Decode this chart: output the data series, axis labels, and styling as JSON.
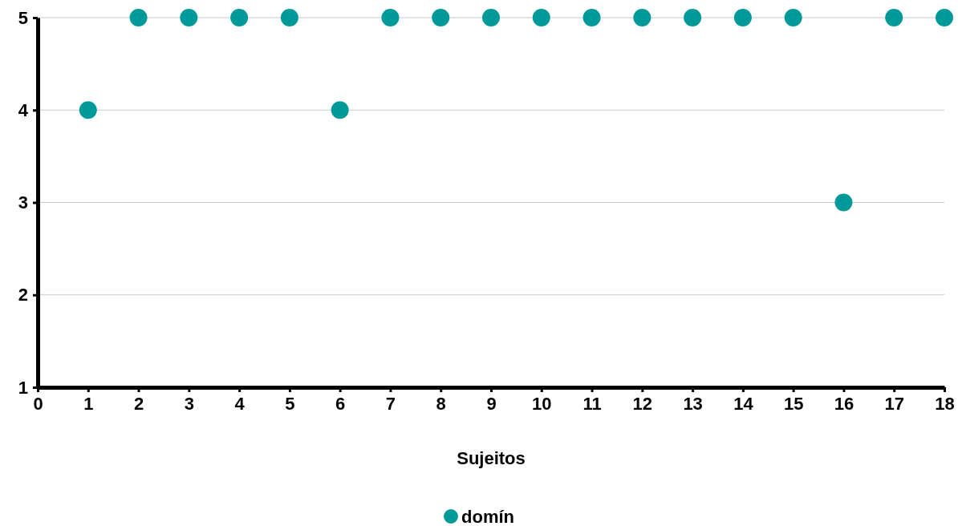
{
  "chart_data": {
    "type": "scatter",
    "xlabel": "Sujeitos",
    "x": [
      1,
      2,
      3,
      4,
      5,
      6,
      7,
      8,
      9,
      10,
      11,
      12,
      13,
      14,
      15,
      16,
      17,
      18
    ],
    "series": [
      {
        "name": "domín",
        "color": "#009999",
        "values": [
          4,
          5,
          5,
          5,
          5,
          4,
          5,
          5,
          5,
          5,
          5,
          5,
          5,
          5,
          5,
          3,
          5,
          5
        ]
      }
    ],
    "xlim": [
      0,
      18
    ],
    "xticks": [
      0,
      1,
      2,
      3,
      4,
      5,
      6,
      7,
      8,
      9,
      10,
      11,
      12,
      13,
      14,
      15,
      16,
      17,
      18
    ],
    "ylim": [
      1,
      5
    ],
    "yticks": [
      1,
      2,
      3,
      4,
      5
    ],
    "grid": "y",
    "legend": "bottom",
    "marker": "circle"
  }
}
